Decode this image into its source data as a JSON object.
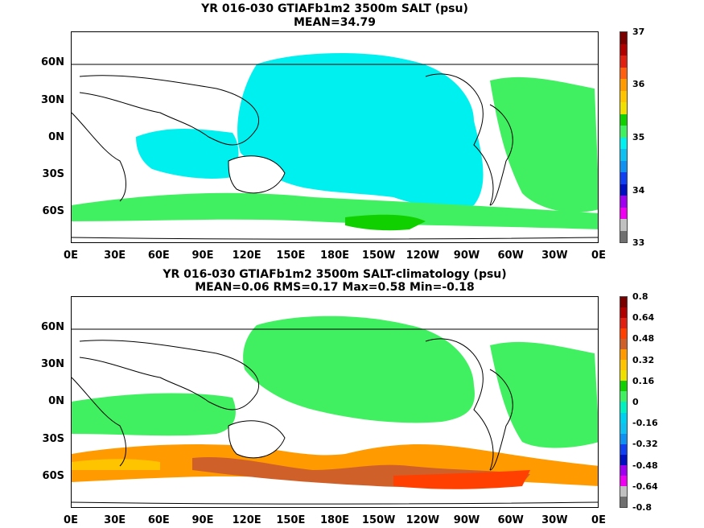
{
  "top": {
    "title_line1": "YR 016-030 GTIAFb1m2 3500m SALT (psu)",
    "title_line2": "MEAN=34.79",
    "colorbar_labels": [
      "37",
      "36",
      "35",
      "34",
      "33"
    ],
    "colors": [
      "#7a0000",
      "#b00000",
      "#e02010",
      "#ff6010",
      "#ff9a00",
      "#ffc400",
      "#f0e000",
      "#10d000",
      "#40f060",
      "#00f0f0",
      "#10c0f0",
      "#1090f0",
      "#1040f0",
      "#0010c0",
      "#a000f0",
      "#f000f0",
      "#c0c0c0",
      "#707070"
    ]
  },
  "bottom": {
    "title_line1": "YR 016-030 GTIAFb1m2 3500m SALT-climatology (psu)",
    "title_line2": "MEAN=0.06   RMS=0.17   Max=0.58   Min=-0.18",
    "colorbar_labels": [
      "0.8",
      "0.64",
      "0.48",
      "0.32",
      "0.16",
      "0",
      "-0.16",
      "-0.32",
      "-0.48",
      "-0.64",
      "-0.8"
    ],
    "colors": [
      "#7a0000",
      "#b00000",
      "#e02010",
      "#ff4000",
      "#d0602a",
      "#ff9a00",
      "#ffc400",
      "#f0e000",
      "#10d000",
      "#40f060",
      "#00f0c0",
      "#00d0f0",
      "#10c0f0",
      "#1090f0",
      "#1040f0",
      "#0010c0",
      "#a000f0",
      "#f000f0",
      "#c0c0c0",
      "#707070"
    ]
  },
  "y_labels": [
    "60N",
    "30N",
    "0N",
    "30S",
    "60S"
  ],
  "x_labels": [
    "0E",
    "30E",
    "60E",
    "90E",
    "120E",
    "150E",
    "180E",
    "150W",
    "120W",
    "90W",
    "60W",
    "30W",
    "0E"
  ]
}
